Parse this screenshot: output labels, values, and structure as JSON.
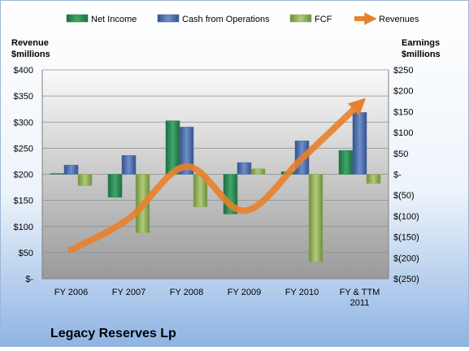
{
  "chart_data": {
    "type": "bar",
    "categories": [
      "FY 2006",
      "FY 2007",
      "FY 2008",
      "FY 2009",
      "FY 2010",
      "FY & TTM 2011"
    ],
    "category_lines": [
      [
        "FY 2006"
      ],
      [
        "FY 2007"
      ],
      [
        "FY 2008"
      ],
      [
        "FY 2009"
      ],
      [
        "FY 2010"
      ],
      [
        "FY & TTM",
        "2011"
      ]
    ],
    "title": "Legacy Reserves Lp",
    "left_axis_label": [
      "Revenue",
      "$millions"
    ],
    "right_axis_label": [
      "Earnings",
      "$millions"
    ],
    "left_ticks": [
      "$-",
      "$50",
      "$100",
      "$150",
      "$200",
      "$250",
      "$300",
      "$350",
      "$400"
    ],
    "right_ticks": [
      "$(250)",
      "$(200)",
      "$(150)",
      "$(100)",
      "$(50)",
      "$-",
      "$50",
      "$100",
      "$150",
      "$200",
      "$250"
    ],
    "left_ylim": [
      0,
      400
    ],
    "right_ylim": [
      -250,
      250
    ],
    "grid": true,
    "legend_position": "top",
    "series": [
      {
        "name": "Net Income",
        "kind": "bar",
        "axis": "right",
        "color": "#2E8B57",
        "values": [
          2,
          -55,
          128,
          -95,
          6,
          57
        ]
      },
      {
        "name": "Cash from Operations",
        "kind": "bar",
        "axis": "right",
        "color": "#4F6FAE",
        "values": [
          22,
          45,
          113,
          28,
          80,
          148
        ]
      },
      {
        "name": "FCF",
        "kind": "bar",
        "axis": "right",
        "color": "#8FAF58",
        "values": [
          -27,
          -140,
          -78,
          13,
          -210,
          -22
        ]
      },
      {
        "name": "Revenues",
        "kind": "line",
        "axis": "left",
        "color": "#E8812C",
        "values": [
          55,
          115,
          215,
          130,
          230,
          335
        ]
      }
    ]
  }
}
